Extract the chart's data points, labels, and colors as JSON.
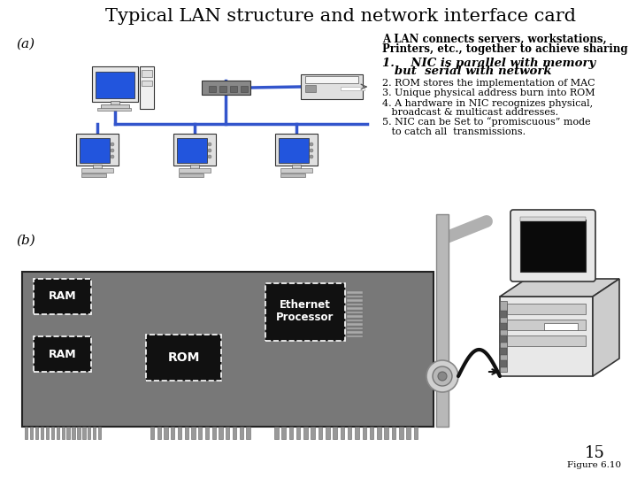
{
  "title": "Typical LAN structure and network interface card",
  "label_a": "(a)",
  "label_b": "(b)",
  "bg_color": "#ffffff",
  "text_right": [
    "A LAN connects servers, workstations,",
    "Printers, etc., together to achieve sharing",
    "1.    NIC is parallel with memory",
    "   but  serial with network",
    "2. ROM stores the implementation of MAC",
    "3. Unique physical address burn into ROM",
    "4. A hardware in NIC recognizes physical,",
    "   broadcast & multicast addresses.",
    "5. NIC can be Set to “promiscuous” mode",
    "   to catch all  transmissions."
  ],
  "page_num": "15",
  "fig_label": "Figure 6.10",
  "lan_line_color": "#3355cc",
  "board_color": "#808080",
  "chip_color": "#111111",
  "finger_color": "#aaaaaa"
}
